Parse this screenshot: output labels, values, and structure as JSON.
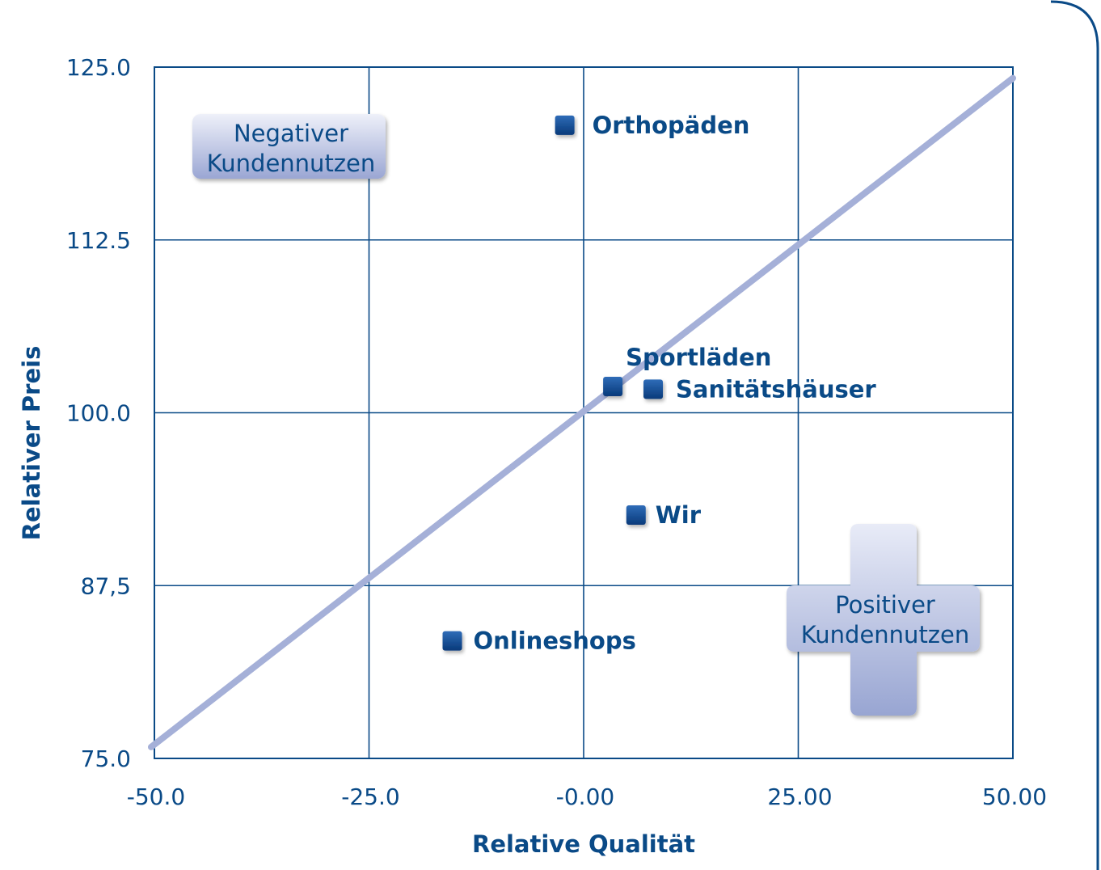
{
  "chart_data": {
    "type": "scatter",
    "title": "",
    "xlabel": "Relative Qualität",
    "ylabel": "Relativer Preis",
    "xlim": [
      -50,
      50
    ],
    "ylim": [
      75,
      125
    ],
    "grid": true,
    "x_ticks": [
      -50,
      -25,
      0,
      25,
      50
    ],
    "x_tick_labels": [
      "-50.0",
      "-25.0",
      "-0.00",
      "25.00",
      "50.00"
    ],
    "y_ticks": [
      125,
      112.5,
      100,
      87.5,
      75
    ],
    "y_tick_labels": [
      "125.0",
      "112.5",
      "100.0",
      "87,5",
      "75.0"
    ],
    "points": [
      {
        "label": "Orthopäden",
        "x": -2.2,
        "y": 120.8
      },
      {
        "label": "Sportläden",
        "x": 3.4,
        "y": 101.9
      },
      {
        "label": "Sanitätshäuser",
        "x": 8.1,
        "y": 101.7
      },
      {
        "label": "Wir",
        "x": 6.1,
        "y": 92.6
      },
      {
        "label": "Onlineshops",
        "x": -15.3,
        "y": 83.5
      }
    ],
    "reference_line": {
      "from": [
        -50,
        76
      ],
      "to": [
        50,
        124.2
      ]
    },
    "annotations": {
      "negative": [
        "Negativer",
        "Kundennutzen"
      ],
      "positive": [
        "Positiver",
        "Kundennutzen"
      ]
    },
    "colors": {
      "frame": "#0a4a87",
      "grid": "#0a4a87",
      "tick_text": "#0a4a87",
      "label_text": "#0a4a87",
      "marker": "#0b4b92",
      "diagonal": "#a5b0d8",
      "callout_light": "#e6e9f6",
      "callout_dark": "#9ca8d4"
    }
  }
}
